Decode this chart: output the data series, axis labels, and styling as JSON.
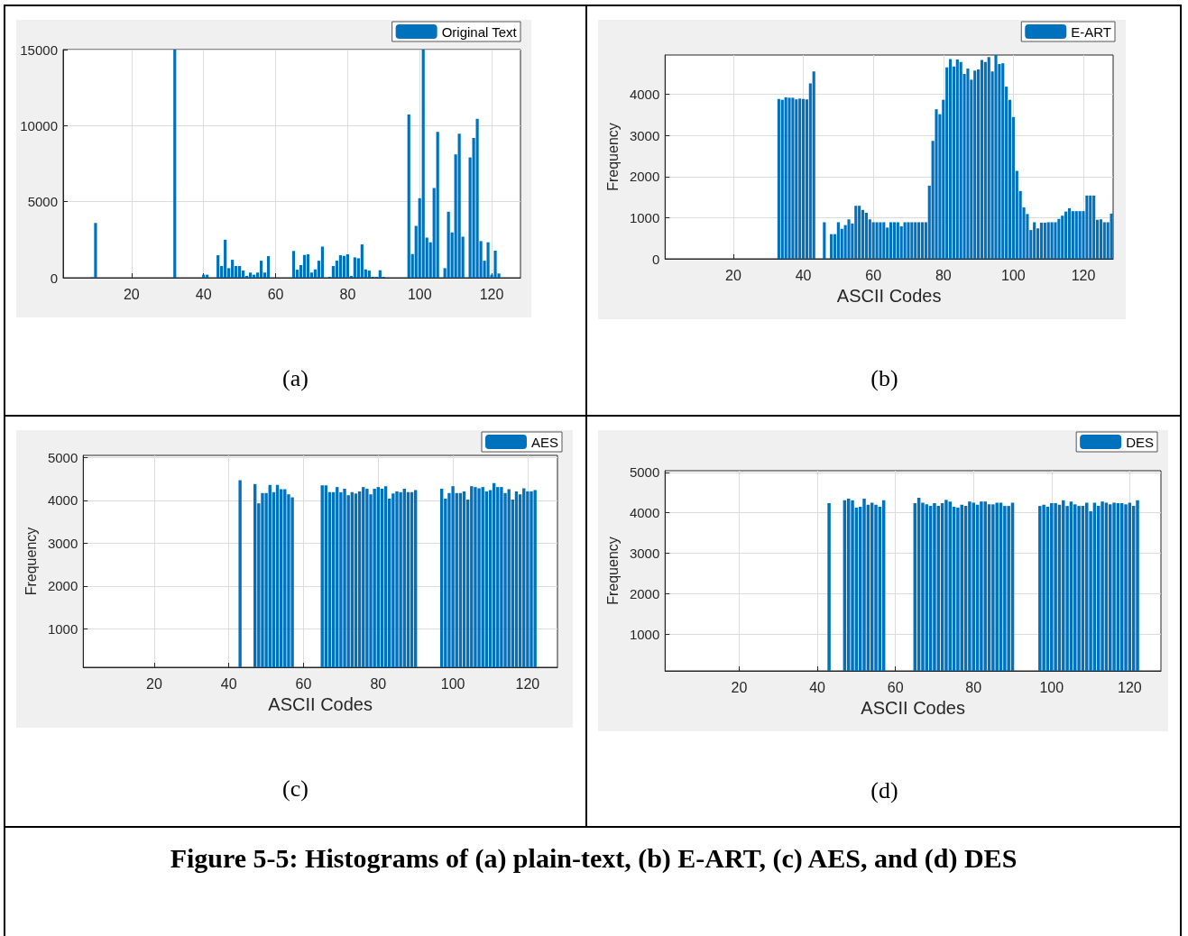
{
  "chart_data": [
    {
      "type": "bar",
      "annotations": [
        "(a)"
      ],
      "xlim": [
        1,
        128
      ],
      "xticks": [
        20,
        40,
        60,
        80,
        100,
        120
      ],
      "ylim": [
        0,
        15000
      ],
      "yticks": [
        0,
        5000,
        10000,
        15000
      ],
      "grid": true,
      "legend": "top right",
      "series": [
        {
          "name": "Original Text",
          "color": "#0072bd",
          "x": [
            9,
            10,
            32,
            40,
            41,
            44,
            45,
            46,
            47,
            48,
            49,
            50,
            51,
            52,
            53,
            54,
            55,
            56,
            57,
            58,
            65,
            66,
            67,
            68,
            69,
            70,
            71,
            72,
            73,
            75,
            76,
            77,
            78,
            79,
            80,
            81,
            82,
            83,
            84,
            85,
            86,
            87,
            88,
            89,
            90,
            97,
            98,
            99,
            100,
            101,
            102,
            103,
            104,
            105,
            107,
            108,
            109,
            110,
            111,
            112,
            114,
            115,
            116,
            117,
            118,
            119,
            120,
            121,
            122
          ],
          "values": [
            30,
            3600,
            15000,
            200,
            200,
            1480,
            770,
            2500,
            630,
            1180,
            770,
            770,
            470,
            120,
            340,
            200,
            340,
            1120,
            340,
            1420,
            1760,
            530,
            830,
            1500,
            1540,
            340,
            550,
            1120,
            2050,
            60,
            770,
            1120,
            1480,
            1440,
            1540,
            120,
            1340,
            1280,
            2190,
            550,
            470,
            60,
            60,
            490,
            60,
            10730,
            1560,
            3410,
            5230,
            15000,
            2640,
            2330,
            5900,
            9590,
            630,
            4340,
            2980,
            8110,
            9470,
            2700,
            7910,
            9190,
            10450,
            2410,
            1120,
            2330,
            200,
            1780,
            280
          ]
        }
      ]
    },
    {
      "type": "bar",
      "annotations": [
        "(b)"
      ],
      "xlabel": "ASCII Codes",
      "ylabel": "Frequency",
      "xlim": [
        0.5,
        128.5
      ],
      "xticks": [
        20,
        40,
        60,
        80,
        100,
        120
      ],
      "ylim": [
        0,
        4960
      ],
      "yticks": [
        0,
        1000,
        2000,
        3000,
        4000
      ],
      "grid": true,
      "legend": "top right",
      "series": [
        {
          "name": "E-ART",
          "color": "#0072bd",
          "x": [
            33,
            34,
            35,
            36,
            37,
            38,
            39,
            40,
            41,
            42,
            43,
            46,
            48,
            49,
            50,
            51,
            52,
            53,
            54,
            55,
            56,
            57,
            58,
            59,
            60,
            61,
            62,
            63,
            64,
            65,
            66,
            67,
            68,
            69,
            70,
            71,
            72,
            73,
            74,
            75,
            76,
            77,
            78,
            79,
            80,
            81,
            82,
            83,
            84,
            85,
            86,
            87,
            88,
            89,
            90,
            91,
            92,
            93,
            94,
            95,
            96,
            97,
            98,
            99,
            100,
            101,
            102,
            103,
            104,
            105,
            106,
            107,
            108,
            109,
            110,
            111,
            112,
            113,
            114,
            115,
            116,
            117,
            118,
            119,
            120,
            121,
            122,
            123,
            124,
            125,
            126,
            127,
            128
          ],
          "values": [
            3890,
            3870,
            3930,
            3920,
            3920,
            3880,
            3900,
            3890,
            3880,
            4270,
            4560,
            890,
            600,
            600,
            890,
            730,
            820,
            960,
            860,
            1290,
            1290,
            1190,
            1120,
            960,
            890,
            890,
            890,
            890,
            760,
            890,
            890,
            890,
            790,
            890,
            890,
            890,
            890,
            890,
            890,
            890,
            1780,
            2870,
            3640,
            3520,
            3870,
            4660,
            4860,
            4680,
            4850,
            4790,
            4500,
            4630,
            4360,
            4580,
            4610,
            4840,
            4790,
            4910,
            4560,
            4960,
            4740,
            4760,
            4190,
            3870,
            3450,
            2140,
            1650,
            1250,
            1090,
            700,
            890,
            740,
            880,
            880,
            890,
            890,
            890,
            970,
            1050,
            1150,
            1230,
            1160,
            1160,
            1160,
            1160,
            1540,
            1540,
            1540,
            950,
            960,
            890,
            890,
            1100
          ]
        }
      ]
    },
    {
      "type": "bar",
      "annotations": [
        "(c)"
      ],
      "xlabel": "ASCII Codes",
      "ylabel": "Frequency",
      "xlim": [
        1,
        128
      ],
      "xticks": [
        20,
        40,
        60,
        80,
        100,
        120
      ],
      "ylim": [
        100,
        5050
      ],
      "yticks": [
        1000,
        2000,
        3000,
        4000,
        5000
      ],
      "grid": true,
      "legend": "top right",
      "series": [
        {
          "name": "AES",
          "color": "#0072bd",
          "x": [
            43,
            47,
            48,
            49,
            50,
            51,
            52,
            53,
            54,
            55,
            56,
            57,
            65,
            66,
            67,
            68,
            69,
            70,
            71,
            72,
            73,
            74,
            75,
            76,
            77,
            78,
            79,
            80,
            81,
            82,
            83,
            84,
            85,
            86,
            87,
            88,
            89,
            90,
            97,
            98,
            99,
            100,
            101,
            102,
            103,
            104,
            105,
            106,
            107,
            108,
            109,
            110,
            111,
            112,
            113,
            114,
            115,
            116,
            117,
            118,
            119,
            120,
            121,
            122
          ],
          "values": [
            4470,
            4380,
            3930,
            4170,
            4170,
            4360,
            4190,
            4360,
            4260,
            4260,
            4140,
            4070,
            4350,
            4350,
            4190,
            4190,
            4310,
            4190,
            4270,
            4120,
            4190,
            4160,
            4210,
            4310,
            4270,
            4140,
            4270,
            4310,
            4270,
            4330,
            4040,
            4160,
            4210,
            4190,
            4270,
            4190,
            4190,
            4240,
            4270,
            4040,
            4170,
            4330,
            4170,
            4170,
            4210,
            4020,
            4330,
            4310,
            4280,
            4310,
            4210,
            4240,
            4400,
            4310,
            4310,
            4170,
            4260,
            4020,
            4210,
            4140,
            4280,
            4210,
            4210,
            4240
          ]
        }
      ]
    },
    {
      "type": "bar",
      "annotations": [
        "(d)",
        "Figure 5-5: Histograms of (a) plain-text, (b) E-ART, (c) AES, and (d) DES"
      ],
      "xlabel": "ASCII Codes",
      "ylabel": "Frequency",
      "xlim": [
        1,
        128
      ],
      "xticks": [
        20,
        40,
        60,
        80,
        100,
        120
      ],
      "ylim": [
        100,
        5040
      ],
      "yticks": [
        1000,
        2000,
        3000,
        4000,
        5000
      ],
      "grid": true,
      "legend": "top right",
      "series": [
        {
          "name": "DES",
          "color": "#0072bd",
          "x": [
            43,
            47,
            48,
            49,
            50,
            51,
            52,
            53,
            54,
            55,
            56,
            57,
            65,
            66,
            67,
            68,
            69,
            70,
            71,
            72,
            73,
            74,
            75,
            76,
            77,
            78,
            79,
            80,
            81,
            82,
            83,
            84,
            85,
            86,
            87,
            88,
            89,
            90,
            97,
            98,
            99,
            100,
            101,
            102,
            103,
            104,
            105,
            106,
            107,
            108,
            109,
            110,
            111,
            112,
            113,
            114,
            115,
            116,
            117,
            118,
            119,
            120,
            121,
            122
          ],
          "values": [
            4240,
            4310,
            4350,
            4310,
            4130,
            4150,
            4350,
            4200,
            4250,
            4200,
            4150,
            4310,
            4240,
            4370,
            4250,
            4210,
            4170,
            4240,
            4170,
            4240,
            4320,
            4280,
            4150,
            4130,
            4200,
            4170,
            4280,
            4250,
            4200,
            4280,
            4280,
            4210,
            4210,
            4250,
            4250,
            4170,
            4170,
            4250,
            4170,
            4200,
            4150,
            4240,
            4240,
            4200,
            4310,
            4170,
            4280,
            4210,
            4170,
            4170,
            4250,
            4040,
            4250,
            4170,
            4280,
            4250,
            4210,
            4250,
            4240,
            4240,
            4210,
            4250,
            4170,
            4310
          ]
        }
      ]
    }
  ]
}
